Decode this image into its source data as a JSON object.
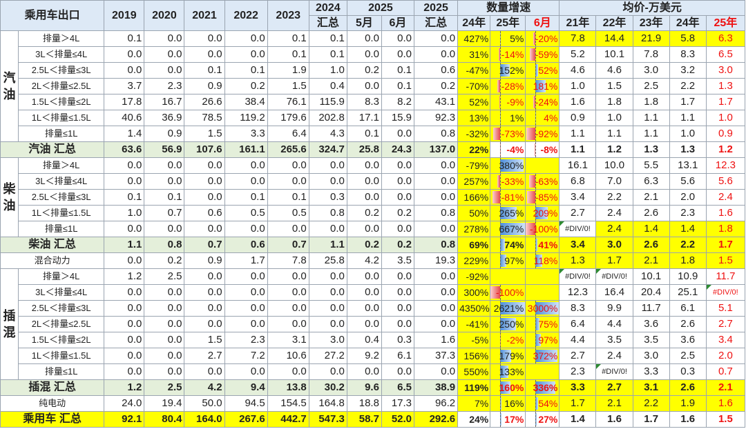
{
  "header": {
    "title": "乘用车出口",
    "years": [
      "2019",
      "2020",
      "2021",
      "2022",
      "2023"
    ],
    "y2024": "2024",
    "y2024_sub": "汇总",
    "y2025": "2025",
    "may": "5月",
    "jun": "6月",
    "y2025b": "2025",
    "y2025b_sub": "汇总",
    "growth_title": "数量增速",
    "g24": "24年",
    "g25": "25年",
    "g6": "6月",
    "price_title": "均价-万美元",
    "p21": "21年",
    "p22": "22年",
    "p23": "23年",
    "p24": "24年",
    "p25": "25年"
  },
  "groups": {
    "gas": "汽\n油",
    "diesel": "柴\n油",
    "phev": "插\n混"
  },
  "rows": [
    {
      "label": "排量＞4L",
      "nums": [
        "0.1",
        "0.0",
        "0.0",
        "0.0",
        "0.1",
        "0.1",
        "0.0",
        "0.0",
        "0.0"
      ],
      "g": [
        "427%",
        "5%",
        "-20%"
      ],
      "gv": [
        427,
        5,
        -20
      ],
      "p": [
        "7.8",
        "14.4",
        "21.9",
        "5.8",
        "6.3"
      ]
    },
    {
      "label": "3L＜排量≤4L",
      "nums": [
        "0.0",
        "0.0",
        "0.0",
        "0.0",
        "0.1",
        "0.1",
        "0.0",
        "0.0",
        "0.0"
      ],
      "g": [
        "31%",
        "-14%",
        "-59%"
      ],
      "gv": [
        31,
        -14,
        -59
      ],
      "p": [
        "5.2",
        "10.1",
        "7.8",
        "8.3",
        "6.5"
      ]
    },
    {
      "label": "2.5L＜排量≤3L",
      "nums": [
        "0.0",
        "0.0",
        "0.1",
        "0.1",
        "1.9",
        "1.0",
        "0.2",
        "0.1",
        "0.6"
      ],
      "g": [
        "-47%",
        "152%",
        "52%"
      ],
      "gv": [
        -47,
        152,
        52
      ],
      "p": [
        "4.6",
        "4.6",
        "3.0",
        "3.2",
        "3.0"
      ]
    },
    {
      "label": "2L＜排量≤2.5L",
      "nums": [
        "3.7",
        "2.3",
        "0.9",
        "0.2",
        "1.5",
        "0.4",
        "0.0",
        "0.1",
        "0.2"
      ],
      "g": [
        "-70%",
        "-28%",
        "181%"
      ],
      "gv": [
        -70,
        -28,
        181
      ],
      "p": [
        "1.0",
        "1.5",
        "2.5",
        "2.2",
        "1.3"
      ]
    },
    {
      "label": "1.5L＜排量≤2L",
      "nums": [
        "17.8",
        "16.7",
        "26.6",
        "38.4",
        "76.1",
        "115.9",
        "8.3",
        "8.2",
        "43.1"
      ],
      "g": [
        "52%",
        "-9%",
        "-24%"
      ],
      "gv": [
        52,
        -9,
        -24
      ],
      "p": [
        "1.6",
        "1.8",
        "1.8",
        "1.7",
        "1.7"
      ]
    },
    {
      "label": "1L＜排量≤1.5L",
      "nums": [
        "40.6",
        "36.9",
        "78.5",
        "119.2",
        "179.6",
        "202.8",
        "17.1",
        "15.9",
        "92.3"
      ],
      "g": [
        "13%",
        "1%",
        "4%"
      ],
      "gv": [
        13,
        1,
        4
      ],
      "p": [
        "0.9",
        "1.0",
        "1.1",
        "1.1",
        "1.0"
      ]
    },
    {
      "label": "排量≤1L",
      "nums": [
        "1.4",
        "0.9",
        "1.5",
        "3.3",
        "6.4",
        "4.3",
        "0.1",
        "0.0",
        "0.8"
      ],
      "g": [
        "-32%",
        "-73%",
        "-92%"
      ],
      "gv": [
        -32,
        -73,
        -92
      ],
      "p": [
        "1.1",
        "1.1",
        "1.1",
        "1.0",
        "0.9"
      ]
    },
    {
      "label": "汽油 汇总",
      "nums": [
        "63.6",
        "56.9",
        "107.6",
        "161.1",
        "265.6",
        "324.7",
        "25.8",
        "24.3",
        "137.0"
      ],
      "g": [
        "22%",
        "-4%",
        "-8%"
      ],
      "gv": [
        22,
        -4,
        -8
      ],
      "p": [
        "1.1",
        "1.2",
        "1.3",
        "1.3",
        "1.2"
      ]
    },
    {
      "label": "排量＞4L",
      "nums": [
        "0.0",
        "0.0",
        "0.0",
        "0.0",
        "0.0",
        "0.0",
        "0.0",
        "0.0",
        "0.0"
      ],
      "g": [
        "-79%",
        "380%",
        ""
      ],
      "gv": [
        -79,
        380,
        0
      ],
      "p": [
        "16.1",
        "10.0",
        "5.5",
        "13.1",
        "12.3"
      ]
    },
    {
      "label": "3L＜排量≤4L",
      "nums": [
        "0.0",
        "0.0",
        "0.0",
        "0.0",
        "0.0",
        "0.0",
        "0.0",
        "0.0",
        "0.0"
      ],
      "g": [
        "257%",
        "-33%",
        "-63%"
      ],
      "gv": [
        257,
        -33,
        -63
      ],
      "p": [
        "6.8",
        "7.0",
        "6.3",
        "5.6",
        "5.6"
      ]
    },
    {
      "label": "2.5L＜排量≤3L",
      "nums": [
        "0.1",
        "0.1",
        "0.0",
        "0.1",
        "0.1",
        "0.3",
        "0.0",
        "0.0",
        "0.0"
      ],
      "g": [
        "166%",
        "-81%",
        "-85%"
      ],
      "gv": [
        166,
        -81,
        -85
      ],
      "p": [
        "3.4",
        "2.2",
        "2.1",
        "2.0",
        "2.4"
      ]
    },
    {
      "label": "1L＜排量≤1.5L",
      "nums": [
        "1.0",
        "0.7",
        "0.6",
        "0.5",
        "0.5",
        "0.8",
        "0.2",
        "0.2",
        "0.8"
      ],
      "g": [
        "50%",
        "265%",
        "209%"
      ],
      "gv": [
        50,
        265,
        209
      ],
      "p": [
        "2.7",
        "2.4",
        "2.6",
        "2.3",
        "1.6"
      ]
    },
    {
      "label": "排量≤1L",
      "nums": [
        "0.0",
        "0.0",
        "0.0",
        "0.0",
        "0.0",
        "0.0",
        "0.0",
        "0.0",
        "0.0"
      ],
      "g": [
        "278%",
        "667%",
        "-100%"
      ],
      "gv": [
        278,
        667,
        -100
      ],
      "p": [
        "#DIV/0!",
        "2.4",
        "1.4",
        "1.4",
        "1.8"
      ]
    },
    {
      "label": "柴油 汇总",
      "nums": [
        "1.1",
        "0.8",
        "0.7",
        "0.6",
        "0.7",
        "1.1",
        "0.2",
        "0.2",
        "0.8"
      ],
      "g": [
        "69%",
        "74%",
        "41%"
      ],
      "gv": [
        69,
        74,
        41
      ],
      "p": [
        "3.4",
        "3.0",
        "2.6",
        "2.2",
        "1.7"
      ]
    },
    {
      "label": "混合动力",
      "nums": [
        "0.0",
        "0.2",
        "0.9",
        "1.7",
        "7.8",
        "25.8",
        "4.2",
        "3.5",
        "19.3"
      ],
      "g": [
        "229%",
        "97%",
        "118%"
      ],
      "gv": [
        229,
        97,
        118
      ],
      "p": [
        "1.3",
        "1.7",
        "2.1",
        "1.8",
        "1.5"
      ]
    },
    {
      "label": "排量＞4L",
      "nums": [
        "1.2",
        "2.5",
        "0.0",
        "0.0",
        "0.0",
        "0.0",
        "0.0",
        "0.0",
        "0.0"
      ],
      "g": [
        "-92%",
        "",
        ""
      ],
      "gv": [
        -92,
        0,
        0
      ],
      "p": [
        "#DIV/0!",
        "#DIV/0!",
        "10.1",
        "10.9",
        "11.7"
      ]
    },
    {
      "label": "3L＜排量≤4L",
      "nums": [
        "0.0",
        "0.0",
        "0.0",
        "0.0",
        "0.0",
        "0.0",
        "0.0",
        "0.0",
        "0.0"
      ],
      "g": [
        "300%",
        "-100%",
        ""
      ],
      "gv": [
        300,
        -100,
        0
      ],
      "p": [
        "12.3",
        "16.4",
        "20.4",
        "25.1",
        "#DIV/0!"
      ]
    },
    {
      "label": "2.5L＜排量≤3L",
      "nums": [
        "0.0",
        "0.0",
        "0.0",
        "0.0",
        "0.0",
        "0.0",
        "0.0",
        "0.0",
        "0.0"
      ],
      "g": [
        "4350%",
        "2621%",
        "3000%"
      ],
      "gv": [
        4350,
        2621,
        3000
      ],
      "p": [
        "8.3",
        "9.9",
        "11.7",
        "6.1",
        "5.1"
      ]
    },
    {
      "label": "2L＜排量≤2.5L",
      "nums": [
        "0.0",
        "0.0",
        "0.0",
        "0.0",
        "0.0",
        "0.0",
        "0.0",
        "0.0",
        "0.0"
      ],
      "g": [
        "-41%",
        "250%",
        "75%"
      ],
      "gv": [
        -41,
        250,
        75
      ],
      "p": [
        "6.4",
        "4.4",
        "3.6",
        "2.6",
        "2.7"
      ]
    },
    {
      "label": "1.5L＜排量≤2L",
      "nums": [
        "0.0",
        "0.0",
        "1.5",
        "2.3",
        "3.1",
        "3.0",
        "0.4",
        "0.3",
        "1.6"
      ],
      "g": [
        "-5%",
        "-2%",
        "97%"
      ],
      "gv": [
        -5,
        -2,
        97
      ],
      "p": [
        "4.4",
        "3.5",
        "3.5",
        "3.6",
        "3.4"
      ]
    },
    {
      "label": "1L＜排量≤1.5L",
      "nums": [
        "0.0",
        "0.0",
        "2.7",
        "7.2",
        "10.6",
        "27.2",
        "9.2",
        "6.1",
        "37.3"
      ],
      "g": [
        "156%",
        "179%",
        "372%"
      ],
      "gv": [
        156,
        179,
        372
      ],
      "p": [
        "2.7",
        "2.4",
        "3.0",
        "2.5",
        "2.0"
      ]
    },
    {
      "label": "排量≤1L",
      "nums": [
        "0.0",
        "0.0",
        "0.0",
        "0.0",
        "0.0",
        "0.0",
        "0.0",
        "0.0",
        "0.0"
      ],
      "g": [
        "550%",
        "133%",
        ""
      ],
      "gv": [
        550,
        133,
        0
      ],
      "p": [
        "2.3",
        "#DIV/0!",
        "3.3",
        "0.3",
        "0.7"
      ]
    },
    {
      "label": "插混 汇总",
      "nums": [
        "1.2",
        "2.5",
        "4.2",
        "9.4",
        "13.8",
        "30.2",
        "9.6",
        "6.5",
        "38.9"
      ],
      "g": [
        "119%",
        "160%",
        "336%"
      ],
      "gv": [
        119,
        160,
        336
      ],
      "p": [
        "3.3",
        "2.7",
        "3.1",
        "2.6",
        "2.1"
      ]
    },
    {
      "label": "纯电动",
      "nums": [
        "24.0",
        "19.4",
        "50.0",
        "94.5",
        "154.5",
        "164.8",
        "18.8",
        "17.3",
        "96.2"
      ],
      "g": [
        "7%",
        "16%",
        "54%"
      ],
      "gv": [
        7,
        16,
        54
      ],
      "p": [
        "1.7",
        "2.1",
        "2.2",
        "1.9",
        "1.6"
      ]
    },
    {
      "label": "乘用车 汇总",
      "nums": [
        "92.1",
        "80.4",
        "164.0",
        "267.6",
        "442.7",
        "547.3",
        "58.7",
        "52.0",
        "292.6"
      ],
      "g": [
        "24%",
        "17%",
        "27%"
      ],
      "gv": [
        24,
        17,
        27
      ],
      "p": [
        "1.4",
        "1.6",
        "1.7",
        "1.6",
        "1.5"
      ]
    }
  ],
  "colors": {
    "header_bg": "#dde9f6",
    "sum_bg": "#e4efda",
    "highlight": "#ffff00",
    "red": "#e11111",
    "bar_pos": "#4f8fd8",
    "bar_neg": "#e84a4a"
  }
}
